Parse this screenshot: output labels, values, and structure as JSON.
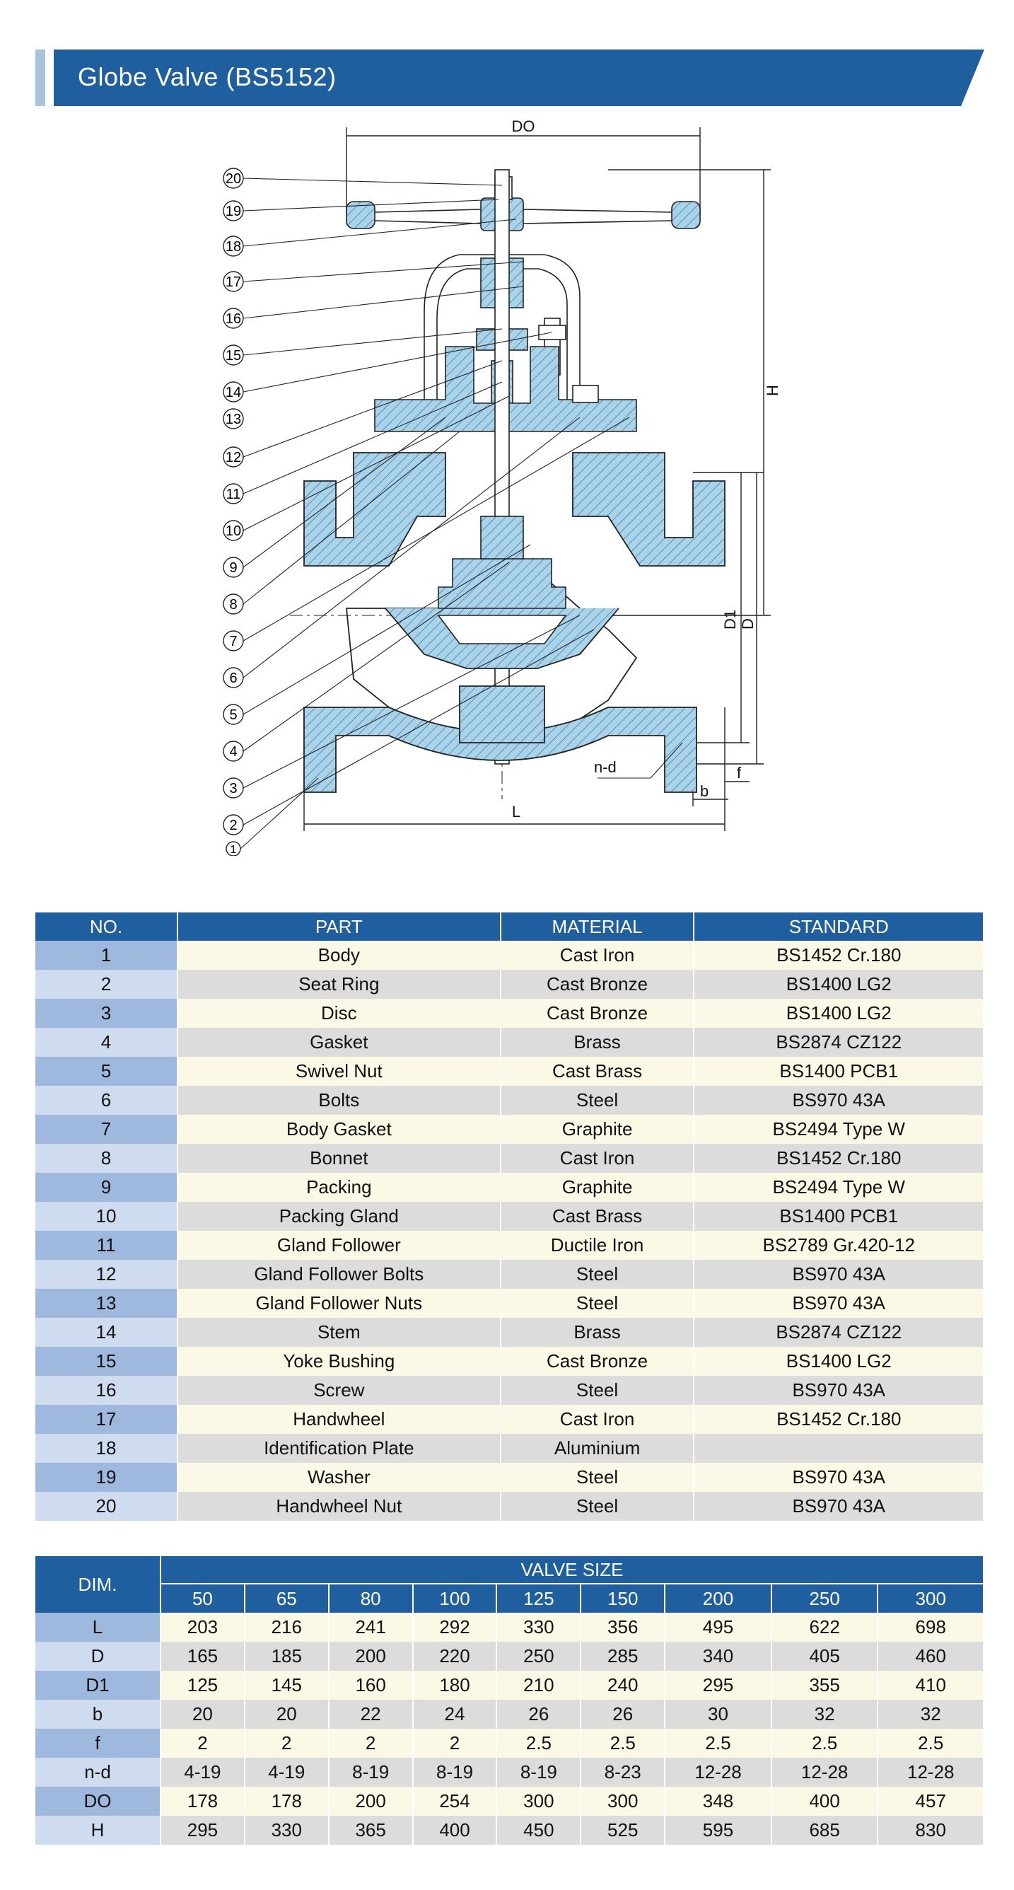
{
  "header": {
    "title": "Globe Valve (BS5152)"
  },
  "drawing": {
    "callouts": [
      "20",
      "19",
      "18",
      "17",
      "16",
      "15",
      "14",
      "13",
      "12",
      "11",
      "10",
      "9",
      "8",
      "7",
      "6",
      "5",
      "4",
      "3",
      "2",
      "1"
    ],
    "dim_labels": {
      "DO": "DO",
      "H": "H",
      "D1": "D1",
      "D": "D",
      "L": "L",
      "b": "b",
      "f": "f",
      "n_d": "n-d"
    }
  },
  "parts_table": {
    "headers": [
      "NO.",
      "PART",
      "MATERIAL",
      "STANDARD"
    ],
    "rows": [
      [
        "1",
        "Body",
        "Cast Iron",
        "BS1452 Cr.180"
      ],
      [
        "2",
        "Seat Ring",
        "Cast Bronze",
        "BS1400 LG2"
      ],
      [
        "3",
        "Disc",
        "Cast Bronze",
        "BS1400 LG2"
      ],
      [
        "4",
        "Gasket",
        "Brass",
        "BS2874 CZ122"
      ],
      [
        "5",
        "Swivel Nut",
        "Cast Brass",
        "BS1400 PCB1"
      ],
      [
        "6",
        "Bolts",
        "Steel",
        "BS970 43A"
      ],
      [
        "7",
        "Body Gasket",
        "Graphite",
        "BS2494 Type W"
      ],
      [
        "8",
        "Bonnet",
        "Cast Iron",
        "BS1452 Cr.180"
      ],
      [
        "9",
        "Packing",
        "Graphite",
        "BS2494 Type W"
      ],
      [
        "10",
        "Packing Gland",
        "Cast Brass",
        "BS1400 PCB1"
      ],
      [
        "11",
        "Gland Follower",
        "Ductile Iron",
        "BS2789 Gr.420-12"
      ],
      [
        "12",
        "Gland Follower Bolts",
        "Steel",
        "BS970 43A"
      ],
      [
        "13",
        "Gland Follower Nuts",
        "Steel",
        "BS970 43A"
      ],
      [
        "14",
        "Stem",
        "Brass",
        "BS2874 CZ122"
      ],
      [
        "15",
        "Yoke Bushing",
        "Cast Bronze",
        "BS1400 LG2"
      ],
      [
        "16",
        "Screw",
        "Steel",
        "BS970 43A"
      ],
      [
        "17",
        "Handwheel",
        "Cast Iron",
        "BS1452 Cr.180"
      ],
      [
        "18",
        "Identification Plate",
        "Aluminium",
        ""
      ],
      [
        "19",
        "Washer",
        "Steel",
        "BS970 43A"
      ],
      [
        "20",
        "Handwheel Nut",
        "Steel",
        "BS970 43A"
      ]
    ]
  },
  "dims_table": {
    "dim_header": "DIM.",
    "valve_size_header": "VALVE SIZE",
    "sizes": [
      "50",
      "65",
      "80",
      "100",
      "125",
      "150",
      "200",
      "250",
      "300"
    ],
    "rows": [
      {
        "label": "L",
        "values": [
          "203",
          "216",
          "241",
          "292",
          "330",
          "356",
          "495",
          "622",
          "698"
        ]
      },
      {
        "label": "D",
        "values": [
          "165",
          "185",
          "200",
          "220",
          "250",
          "285",
          "340",
          "405",
          "460"
        ]
      },
      {
        "label": "D1",
        "values": [
          "125",
          "145",
          "160",
          "180",
          "210",
          "240",
          "295",
          "355",
          "410"
        ]
      },
      {
        "label": "b",
        "values": [
          "20",
          "20",
          "22",
          "24",
          "26",
          "26",
          "30",
          "32",
          "32"
        ]
      },
      {
        "label": "f",
        "values": [
          "2",
          "2",
          "2",
          "2",
          "2.5",
          "2.5",
          "2.5",
          "2.5",
          "2.5"
        ]
      },
      {
        "label": "n-d",
        "values": [
          "4-19",
          "4-19",
          "8-19",
          "8-19",
          "8-19",
          "8-23",
          "12-28",
          "12-28",
          "12-28"
        ]
      },
      {
        "label": "DO",
        "values": [
          "178",
          "178",
          "200",
          "254",
          "300",
          "300",
          "348",
          "400",
          "457"
        ]
      },
      {
        "label": "H",
        "values": [
          "295",
          "330",
          "365",
          "400",
          "450",
          "525",
          "595",
          "685",
          "830"
        ]
      }
    ]
  },
  "colors": {
    "header_blue": "#1f5fa0",
    "section_fill": "#a9d3ea",
    "no_col_dark": "#9fb8dd",
    "no_col_light": "#cfdbee"
  }
}
